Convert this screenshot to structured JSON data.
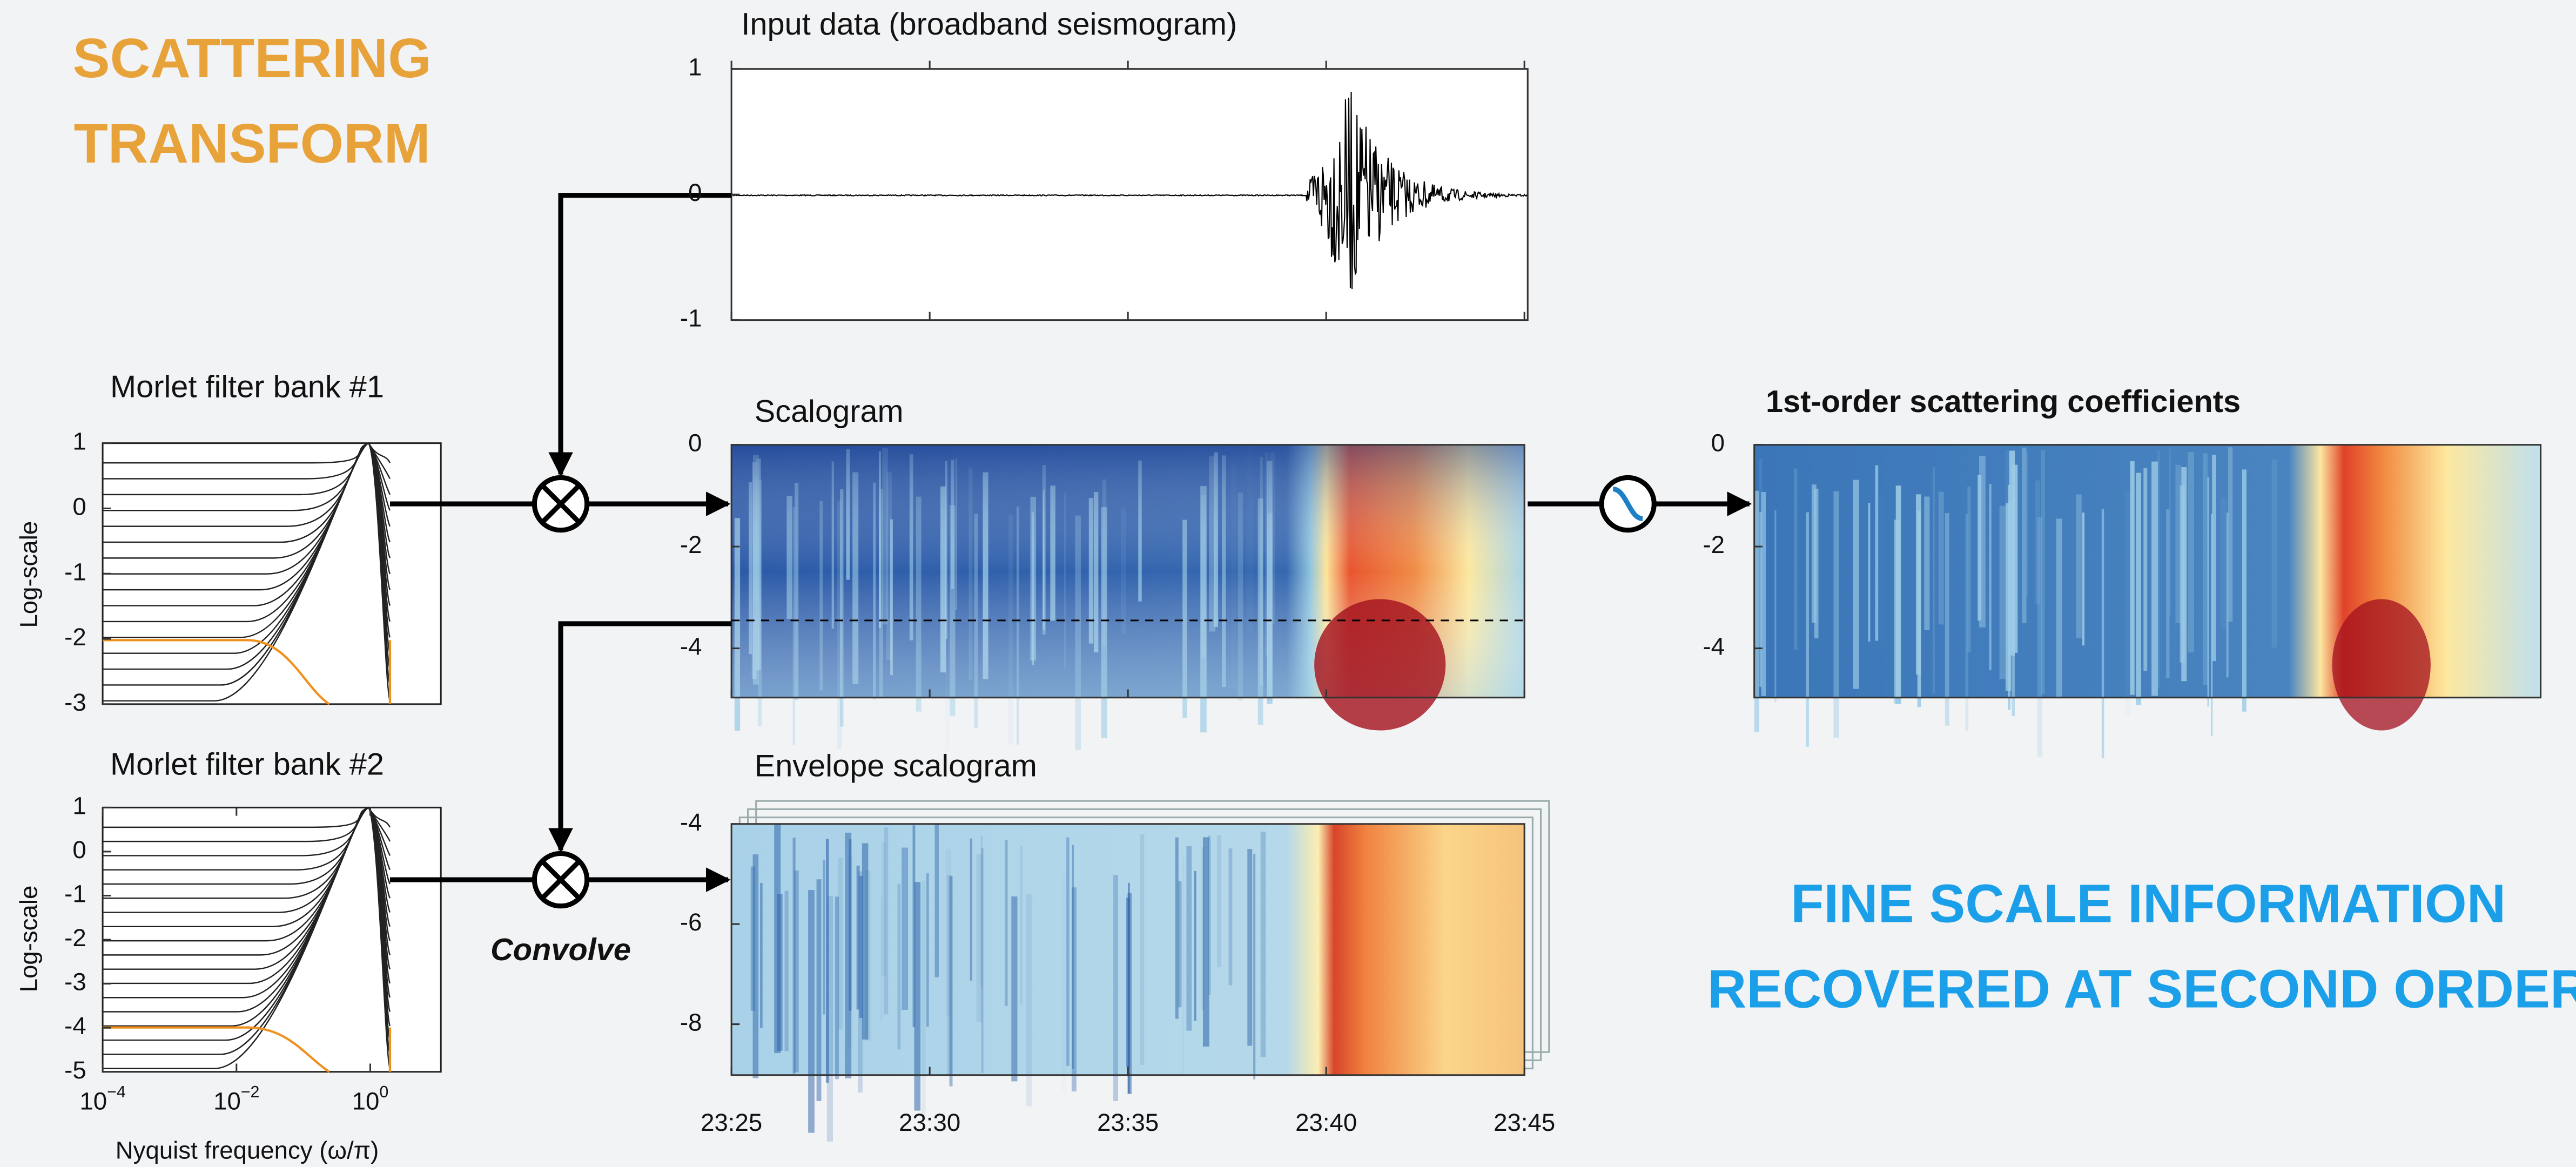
{
  "header": {
    "title_lines": [
      "SCATTERING",
      "TRANSFORM"
    ]
  },
  "filter_banks": [
    {
      "title": "Morlet filter bank #1",
      "ylabel": "Log-scale",
      "yticks": [
        "1",
        "0",
        "-1",
        "-2",
        "-3"
      ]
    },
    {
      "title": "Morlet filter bank #2",
      "ylabel": "Log-scale",
      "yticks": [
        "1",
        "0",
        "-1",
        "-2",
        "-3",
        "-4",
        "-5"
      ],
      "xticks": [
        {
          "base": "10",
          "exp": "−4"
        },
        {
          "base": "10",
          "exp": "−2"
        },
        {
          "base": "10",
          "exp": "0"
        }
      ],
      "xlabel": "Nyquist frequency (ω/π)"
    }
  ],
  "operator_label": "Convolve",
  "panels": {
    "input": {
      "title": "Input data (broadband seismogram)",
      "yticks": [
        "1",
        "0",
        "-1"
      ]
    },
    "scalogram": {
      "title": "Scalogram",
      "yticks": [
        "0",
        "-2",
        "-4"
      ]
    },
    "envelope": {
      "title": "Envelope scalogram",
      "yticks": [
        "-4",
        "-6",
        "-8"
      ]
    },
    "coefficients": {
      "title": "1st-order scattering coefficients",
      "yticks": [
        "0",
        "-2",
        "-4"
      ]
    },
    "time_ticks": [
      "23:25",
      "23:30",
      "23:35",
      "23:40",
      "23:45"
    ]
  },
  "note": {
    "lines": [
      "FINE SCALE INFORMATION",
      "RECOVERED AT SECOND ORDER"
    ]
  }
}
